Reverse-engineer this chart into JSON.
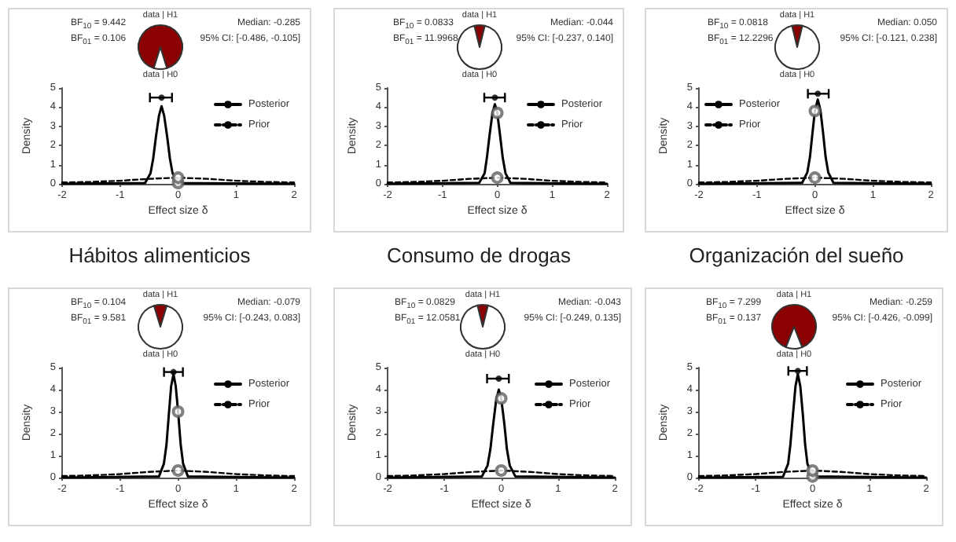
{
  "chart_data": [
    {
      "type": "line",
      "title": "Hábitos alimenticios",
      "xlabel": "Effect size δ",
      "ylabel": "Density",
      "xlim": [
        -2,
        2
      ],
      "xticks": [
        -2,
        -1,
        0,
        1,
        2
      ],
      "ylim": [
        0,
        5
      ],
      "yticks": [
        0,
        1,
        2,
        3,
        4,
        5
      ],
      "grid": false,
      "legend": "top right",
      "annotations": [
        "BF$_{10}$ = 9.442",
        "BF$_{01}$ = 0.106",
        "Median: -0.285",
        "95% CI: [-0.486, -0.105]"
      ],
      "series": [
        {
          "name": "Posterior",
          "type": "line",
          "color": "#000000",
          "line_style": "solid",
          "marker": "none",
          "x": [
            -2,
            -0.57,
            -0.475,
            -0.43,
            -0.38,
            -0.33,
            -0.285,
            -0.24,
            -0.19,
            -0.14,
            -0.095,
            0,
            2
          ],
          "values": [
            0,
            0.04,
            0.55,
            1.3,
            2.5,
            3.55,
            4.05,
            3.55,
            2.5,
            1.3,
            0.55,
            0.04,
            0
          ]
        },
        {
          "name": "Prior",
          "type": "line",
          "color": "#000000",
          "line_style": "dashed",
          "marker": "none",
          "x": [
            -2,
            -1.5,
            -1,
            -0.5,
            0,
            0.5,
            1,
            1.5,
            2
          ],
          "values": [
            0.07,
            0.1,
            0.16,
            0.26,
            0.32,
            0.26,
            0.16,
            0.1,
            0.07
          ]
        },
        {
          "type": "scatter",
          "color": "#606060",
          "marker": "circle",
          "x": [
            0,
            0
          ],
          "values": [
            0.04,
            0.32
          ]
        },
        {
          "type": "scatter",
          "color": "#000000",
          "x": [
            -0.285
          ],
          "values": [
            4.5
          ],
          "xerrors": [
            [
              -0.486,
              -0.105
            ]
          ]
        }
      ]
    },
    {
      "type": "pie",
      "categories": [
        "data | H1",
        "data | H0"
      ],
      "values": [
        90.4,
        9.6
      ],
      "colors": [
        "#8b0000",
        "#ffffff"
      ]
    },
    {
      "type": "line",
      "title": "Consumo de drogas",
      "xlabel": "Effect size δ",
      "ylabel": "Density",
      "xlim": [
        -2,
        2
      ],
      "xticks": [
        -2,
        -1,
        0,
        1,
        2
      ],
      "ylim": [
        0,
        5
      ],
      "yticks": [
        0,
        1,
        2,
        3,
        4,
        5
      ],
      "grid": false,
      "legend": "top right",
      "annotations": [
        "BF$_{10}$ = 0.0833",
        "BF$_{01}$ = 11.9968",
        "Median: -0.044",
        "95% CI: [-0.237, 0.140]"
      ],
      "series": [
        {
          "name": "Posterior",
          "type": "line",
          "color": "#000000",
          "line_style": "solid",
          "marker": "none",
          "x": [
            -2,
            -0.33,
            -0.23,
            -0.19,
            -0.14,
            -0.09,
            -0.044,
            0,
            0.05,
            0.1,
            0.15,
            0.24,
            2
          ],
          "values": [
            0,
            0.05,
            0.55,
            1.35,
            2.55,
            3.65,
            4.15,
            3.7,
            2.55,
            1.35,
            0.55,
            0.05,
            0
          ]
        },
        {
          "name": "Prior",
          "type": "line",
          "color": "#000000",
          "line_style": "dashed",
          "marker": "none",
          "x": [
            -2,
            -1.5,
            -1,
            -0.5,
            0,
            0.5,
            1,
            1.5,
            2
          ],
          "values": [
            0.07,
            0.1,
            0.16,
            0.26,
            0.32,
            0.26,
            0.16,
            0.1,
            0.07
          ]
        },
        {
          "type": "scatter",
          "color": "#606060",
          "marker": "circle",
          "x": [
            0,
            0
          ],
          "values": [
            3.7,
            0.32
          ]
        },
        {
          "type": "scatter",
          "color": "#000000",
          "x": [
            -0.044
          ],
          "values": [
            4.5
          ],
          "xerrors": [
            [
              -0.237,
              0.14
            ]
          ]
        }
      ]
    },
    {
      "type": "pie",
      "categories": [
        "data | H1",
        "data | H0"
      ],
      "values": [
        7.7,
        92.3
      ],
      "colors": [
        "#8b0000",
        "#ffffff"
      ]
    },
    {
      "type": "line",
      "title": "Organización del sueño",
      "xlabel": "Effect size δ",
      "ylabel": "Density",
      "xlim": [
        -2,
        2
      ],
      "xticks": [
        -2,
        -1,
        0,
        1,
        2
      ],
      "ylim": [
        0,
        5
      ],
      "yticks": [
        0,
        1,
        2,
        3,
        4,
        5
      ],
      "grid": false,
      "legend": "top left",
      "annotations": [
        "BF$_{10}$ = 0.0818",
        "BF$_{01}$ = 12.2296",
        "Median: 0.050",
        "95% CI: [-0.121, 0.238]"
      ],
      "series": [
        {
          "name": "Posterior",
          "type": "line",
          "color": "#000000",
          "line_style": "solid",
          "marker": "none",
          "x": [
            -2,
            -0.22,
            -0.13,
            -0.085,
            -0.04,
            0,
            0.05,
            0.095,
            0.14,
            0.185,
            0.23,
            0.32,
            2
          ],
          "values": [
            0,
            0.05,
            0.6,
            1.4,
            2.7,
            3.8,
            4.4,
            3.85,
            2.7,
            1.4,
            0.6,
            0.05,
            0
          ]
        },
        {
          "name": "Prior",
          "type": "line",
          "color": "#000000",
          "line_style": "dashed",
          "marker": "none",
          "x": [
            -2,
            -1.5,
            -1,
            -0.5,
            0,
            0.5,
            1,
            1.5,
            2
          ],
          "values": [
            0.07,
            0.1,
            0.16,
            0.26,
            0.32,
            0.26,
            0.16,
            0.1,
            0.07
          ]
        },
        {
          "type": "scatter",
          "color": "#606060",
          "marker": "circle",
          "x": [
            0,
            0
          ],
          "values": [
            3.8,
            0.32
          ]
        },
        {
          "type": "scatter",
          "color": "#000000",
          "x": [
            0.05
          ],
          "values": [
            4.7
          ],
          "xerrors": [
            [
              -0.121,
              0.238
            ]
          ]
        }
      ]
    },
    {
      "type": "pie",
      "categories": [
        "data | H1",
        "data | H0"
      ],
      "values": [
        7.6,
        92.4
      ],
      "colors": [
        "#8b0000",
        "#ffffff"
      ]
    },
    {
      "type": "line",
      "xlabel": "Effect size δ",
      "ylabel": "Density",
      "xlim": [
        -2,
        2
      ],
      "xticks": [
        -2,
        -1,
        0,
        1,
        2
      ],
      "ylim": [
        0,
        5
      ],
      "yticks": [
        0,
        1,
        2,
        3,
        4,
        5
      ],
      "grid": false,
      "legend": "top right",
      "annotations": [
        "BF$_{10}$ = 0.104",
        "BF$_{01}$ = 9.581",
        "Median: -0.079",
        "95% CI: [-0.243, 0.083]"
      ],
      "series": [
        {
          "name": "Posterior",
          "type": "line",
          "color": "#000000",
          "line_style": "solid",
          "marker": "none",
          "x": [
            -2,
            -0.33,
            -0.245,
            -0.2,
            -0.16,
            -0.12,
            -0.079,
            -0.04,
            0,
            0.045,
            0.087,
            0.17,
            2
          ],
          "values": [
            0,
            0.05,
            0.63,
            1.5,
            2.85,
            4.15,
            4.7,
            4.15,
            3,
            1.5,
            0.63,
            0.05,
            0
          ]
        },
        {
          "name": "Prior",
          "type": "line",
          "color": "#000000",
          "line_style": "dashed",
          "marker": "none",
          "x": [
            -2,
            -1.5,
            -1,
            -0.5,
            0,
            0.5,
            1,
            1.5,
            2
          ],
          "values": [
            0.07,
            0.1,
            0.16,
            0.26,
            0.32,
            0.26,
            0.16,
            0.1,
            0.07
          ]
        },
        {
          "type": "scatter",
          "color": "#606060",
          "marker": "circle",
          "x": [
            0,
            0
          ],
          "values": [
            3,
            0.32
          ]
        },
        {
          "type": "scatter",
          "color": "#000000",
          "x": [
            -0.079
          ],
          "values": [
            4.8
          ],
          "xerrors": [
            [
              -0.243,
              0.083
            ]
          ]
        }
      ]
    },
    {
      "type": "pie",
      "categories": [
        "data | H1",
        "data | H0"
      ],
      "values": [
        9.4,
        90.6
      ],
      "colors": [
        "#8b0000",
        "#ffffff"
      ]
    },
    {
      "type": "line",
      "xlabel": "Effect size δ",
      "ylabel": "Density",
      "xlim": [
        -2,
        2
      ],
      "xticks": [
        -2,
        -1,
        0,
        1,
        2
      ],
      "ylim": [
        0,
        5
      ],
      "yticks": [
        0,
        1,
        2,
        3,
        4,
        5
      ],
      "grid": false,
      "legend": "top right",
      "annotations": [
        "BF$_{10}$ = 0.0829",
        "BF$_{01}$ = 12.0581",
        "Median: -0.043",
        "95% CI: [-0.249, 0.135]"
      ],
      "series": [
        {
          "name": "Posterior",
          "type": "line",
          "color": "#000000",
          "line_style": "solid",
          "marker": "none",
          "x": [
            -2,
            -0.34,
            -0.24,
            -0.19,
            -0.14,
            -0.09,
            -0.043,
            0,
            0.055,
            0.1,
            0.15,
            0.25,
            2
          ],
          "values": [
            0,
            0.05,
            0.55,
            1.3,
            2.45,
            3.5,
            4,
            3.6,
            2.45,
            1.3,
            0.55,
            0.05,
            0
          ]
        },
        {
          "name": "Prior",
          "type": "line",
          "color": "#000000",
          "line_style": "dashed",
          "marker": "none",
          "x": [
            -2,
            -1.5,
            -1,
            -0.5,
            0,
            0.5,
            1,
            1.5,
            2
          ],
          "values": [
            0.07,
            0.1,
            0.16,
            0.26,
            0.32,
            0.26,
            0.16,
            0.1,
            0.07
          ]
        },
        {
          "type": "scatter",
          "color": "#606060",
          "marker": "circle",
          "x": [
            0,
            0
          ],
          "values": [
            3.6,
            0.32
          ]
        },
        {
          "type": "scatter",
          "color": "#000000",
          "x": [
            -0.043
          ],
          "values": [
            4.5
          ],
          "xerrors": [
            [
              -0.249,
              0.135
            ]
          ]
        }
      ]
    },
    {
      "type": "pie",
      "categories": [
        "data | H1",
        "data | H0"
      ],
      "values": [
        7.7,
        92.3
      ],
      "colors": [
        "#8b0000",
        "#ffffff"
      ]
    },
    {
      "type": "line",
      "xlabel": "Effect size δ",
      "ylabel": "Density",
      "xlim": [
        -2,
        2
      ],
      "xticks": [
        -2,
        -1,
        0,
        1,
        2
      ],
      "ylim": [
        0,
        5
      ],
      "yticks": [
        0,
        1,
        2,
        3,
        4,
        5
      ],
      "grid": false,
      "legend": "top right",
      "annotations": [
        "BF$_{10}$ = 7.299",
        "BF$_{01}$ = 0.137",
        "Median: -0.259",
        "95% CI: [-0.426, -0.099]"
      ],
      "series": [
        {
          "name": "Posterior",
          "type": "line",
          "color": "#000000",
          "line_style": "solid",
          "marker": "none",
          "x": [
            -2,
            -0.52,
            -0.43,
            -0.39,
            -0.345,
            -0.3,
            -0.259,
            -0.215,
            -0.17,
            -0.13,
            -0.09,
            0,
            2
          ],
          "values": [
            0,
            0.04,
            0.63,
            1.5,
            2.85,
            4.15,
            4.7,
            4.15,
            2.85,
            1.5,
            0.63,
            0.05,
            0
          ]
        },
        {
          "name": "Prior",
          "type": "line",
          "color": "#000000",
          "line_style": "dashed",
          "marker": "none",
          "x": [
            -2,
            -1.5,
            -1,
            -0.5,
            0,
            0.5,
            1,
            1.5,
            2
          ],
          "values": [
            0.07,
            0.1,
            0.16,
            0.26,
            0.32,
            0.26,
            0.16,
            0.1,
            0.07
          ]
        },
        {
          "type": "scatter",
          "color": "#606060",
          "marker": "circle",
          "x": [
            0,
            0
          ],
          "values": [
            0.05,
            0.32
          ]
        },
        {
          "type": "scatter",
          "color": "#000000",
          "x": [
            -0.259
          ],
          "values": [
            4.85
          ],
          "xerrors": [
            [
              -0.426,
              -0.099
            ]
          ]
        }
      ]
    },
    {
      "type": "pie",
      "categories": [
        "data | H1",
        "data | H0"
      ],
      "values": [
        88,
        12
      ],
      "colors": [
        "#8b0000",
        "#ffffff"
      ]
    }
  ]
}
